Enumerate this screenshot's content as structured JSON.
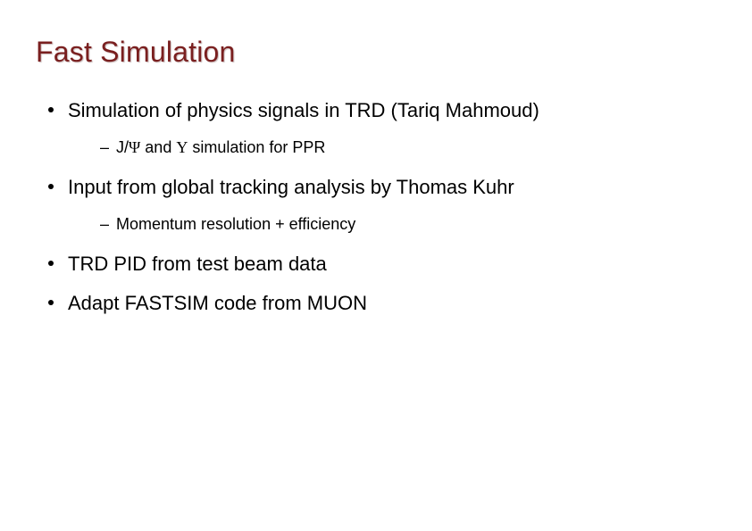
{
  "title": {
    "text": "Fast Simulation",
    "color": "#7a1f1f",
    "fontsize": 32
  },
  "body": {
    "fontsize_level1": 22,
    "fontsize_level2": 18,
    "bullet_color": "#000000",
    "text_color": "#000000"
  },
  "bullets": [
    {
      "text": "Simulation of physics signals in TRD (Tariq Mahmoud)",
      "sub": [
        {
          "text_html": "J/Ψ and Υ simulation for PPR"
        }
      ]
    },
    {
      "text": "Input from global tracking analysis by Thomas Kuhr",
      "sub": [
        {
          "text_html": "Momentum resolution + efficiency"
        }
      ]
    },
    {
      "text": "TRD PID from test beam data",
      "sub": []
    },
    {
      "text": "Adapt FASTSIM code from MUON",
      "sub": []
    }
  ],
  "background_color": "#ffffff",
  "slide_width": 842,
  "slide_height": 595
}
